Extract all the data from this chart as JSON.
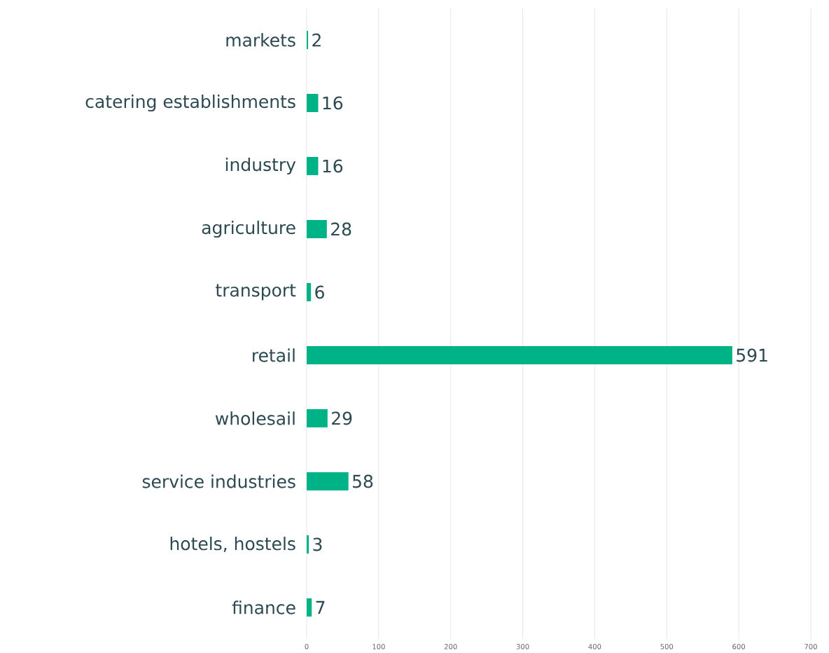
{
  "chart_data": {
    "type": "bar",
    "orientation": "horizontal",
    "categories": [
      "markets",
      "catering establishments",
      "industry",
      "agriculture",
      "transport",
      "retail",
      "wholesail",
      "service industries",
      "hotels, hostels",
      "finance"
    ],
    "values": [
      2,
      16,
      16,
      28,
      6,
      591,
      29,
      58,
      3,
      7
    ],
    "color": "#00b386",
    "xlim": [
      0,
      700
    ],
    "xticks": [
      0,
      100,
      200,
      300,
      400,
      500,
      600,
      700
    ],
    "grid": "x",
    "data_labels": true
  }
}
